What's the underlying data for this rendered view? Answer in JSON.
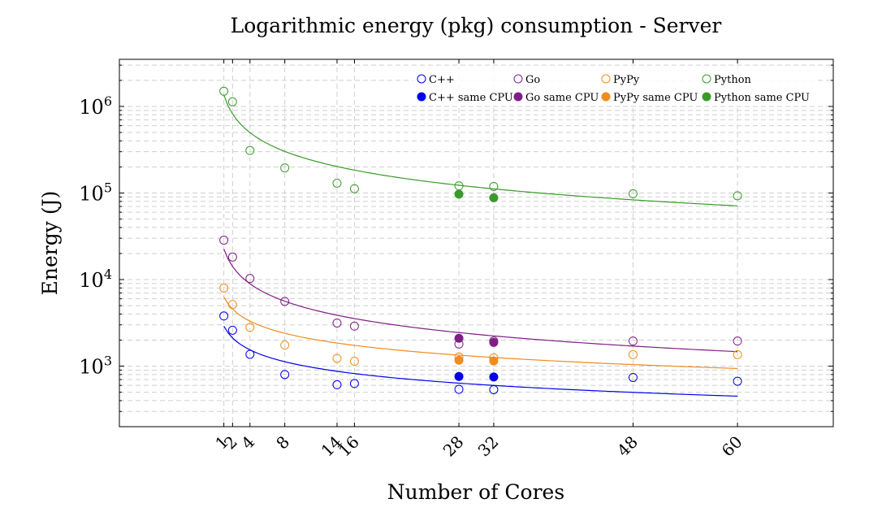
{
  "chart_data": {
    "type": "scatter",
    "title": "Logarithmic energy (pkg) consumption - Server",
    "xlabel": "Number of Cores",
    "ylabel": "Energy (J)",
    "yscale": "log",
    "xlim": [
      -11,
      71
    ],
    "ylim": [
      200,
      3500000
    ],
    "x_ticks": [
      1,
      2,
      4,
      8,
      14,
      16,
      28,
      32,
      48,
      60
    ],
    "y_ticks": [
      {
        "value": 1000,
        "base": "10",
        "exp": "3"
      },
      {
        "value": 10000,
        "base": "10",
        "exp": "4"
      },
      {
        "value": 100000,
        "base": "10",
        "exp": "5"
      },
      {
        "value": 1000000,
        "base": "10",
        "exp": "6"
      }
    ],
    "grid": true,
    "legend_position": "top-right",
    "series": [
      {
        "name": "C++",
        "color": "#0000ee",
        "marker": "open-circle",
        "x": [
          1,
          2,
          4,
          8,
          14,
          16,
          28,
          32,
          48,
          60
        ],
        "y": [
          3800,
          2600,
          1370,
          800,
          610,
          630,
          540,
          535,
          740,
          670
        ],
        "fit": {
          "y_at_1": 2900,
          "y_at_60": 450
        }
      },
      {
        "name": "Go",
        "color": "#7f1f86",
        "marker": "open-circle",
        "x": [
          1,
          2,
          4,
          8,
          14,
          16,
          28,
          32,
          48,
          60
        ],
        "y": [
          28500,
          18200,
          10300,
          5600,
          3150,
          2900,
          1800,
          1950,
          1950,
          1950
        ],
        "fit": {
          "y_at_1": 22500,
          "y_at_60": 1470
        }
      },
      {
        "name": "PyPy",
        "color": "#f08c1e",
        "marker": "open-circle",
        "x": [
          1,
          2,
          4,
          8,
          14,
          16,
          28,
          32,
          48,
          60
        ],
        "y": [
          8000,
          5150,
          2800,
          1750,
          1230,
          1140,
          1280,
          1250,
          1360,
          1360
        ],
        "fit": {
          "y_at_1": 6300,
          "y_at_60": 940
        }
      },
      {
        "name": "Python",
        "color": "#3a9a2a",
        "marker": "open-circle",
        "x": [
          1,
          2,
          4,
          8,
          14,
          16,
          28,
          32,
          48,
          60
        ],
        "y": [
          1500000,
          1130000,
          310000,
          195000,
          130000,
          112000,
          121000,
          119000,
          98000,
          93000
        ],
        "fit": {
          "y_at_1": 1350000,
          "y_at_60": 71000
        }
      },
      {
        "name": "C++ same CPU",
        "color": "#0000ee",
        "marker": "filled-circle",
        "x": [
          28,
          32
        ],
        "y": [
          760,
          750
        ]
      },
      {
        "name": "Go same CPU",
        "color": "#7f1f86",
        "marker": "filled-circle",
        "x": [
          28,
          32
        ],
        "y": [
          2100,
          1880
        ]
      },
      {
        "name": "PyPy same CPU",
        "color": "#f08c1e",
        "marker": "filled-circle",
        "x": [
          28,
          32
        ],
        "y": [
          1170,
          1150
        ]
      },
      {
        "name": "Python same CPU",
        "color": "#3a9a2a",
        "marker": "filled-circle",
        "x": [
          28,
          32
        ],
        "y": [
          97000,
          88000
        ]
      }
    ]
  }
}
